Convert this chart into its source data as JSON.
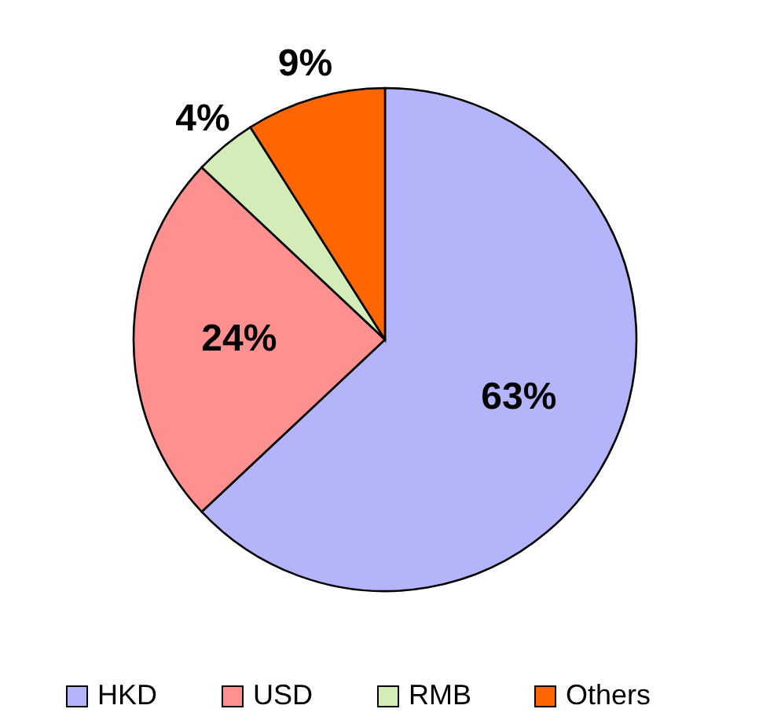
{
  "chart_data": {
    "type": "pie",
    "categories": [
      "HKD",
      "USD",
      "RMB",
      "Others"
    ],
    "values": [
      63,
      24,
      4,
      9
    ],
    "colors": [
      "#b4b4fa",
      "#ff9090",
      "#d4ecb8",
      "#ff6600"
    ],
    "value_labels": [
      "63%",
      "24%",
      "4%",
      "9%"
    ],
    "legend": "bottom"
  }
}
